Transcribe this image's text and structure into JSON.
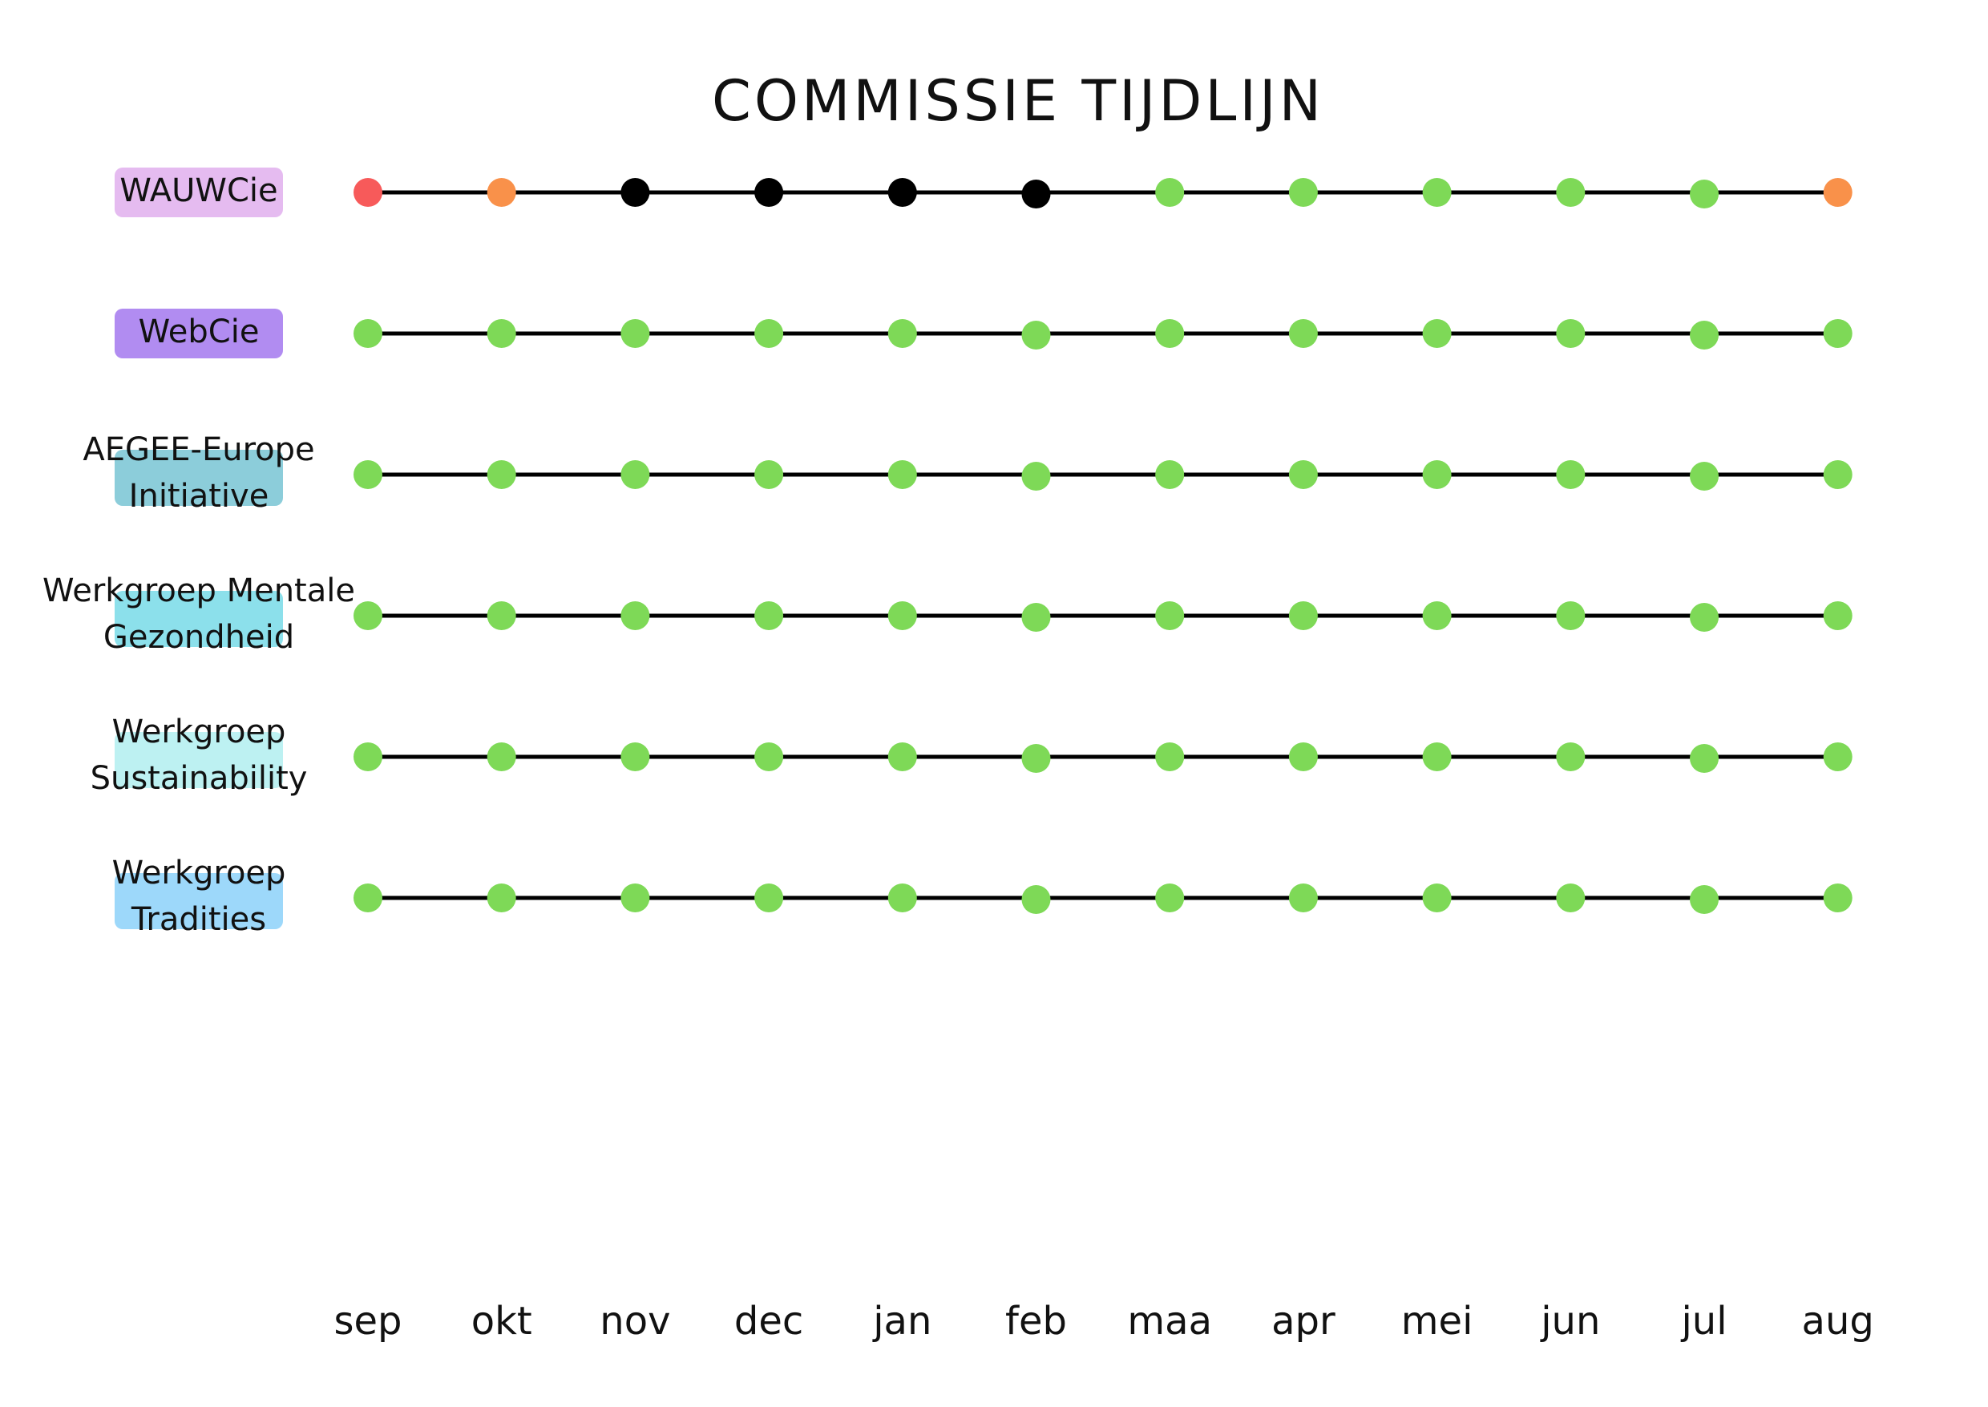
{
  "header": {
    "title": "COMMISSIE TIJDLIJN"
  },
  "months": [
    "sep",
    "okt",
    "nov",
    "dec",
    "jan",
    "feb",
    "maa",
    "apr",
    "mei",
    "jun",
    "jul",
    "aug"
  ],
  "rows": [
    {
      "label": [
        "WAUWCie"
      ],
      "highlight": "#e2b4ee",
      "dots": [
        "#f75a5a",
        "#f9914a",
        "#000000",
        "#000000",
        "#000000",
        "#000000",
        "#7ed957",
        "#7ed957",
        "#7ed957",
        "#7ed957",
        "#7ed957",
        "#f9914a"
      ]
    },
    {
      "label": [
        "WebCie"
      ],
      "highlight": "#a97ff0",
      "dots": [
        "#7ed957",
        "#7ed957",
        "#7ed957",
        "#7ed957",
        "#7ed957",
        "#7ed957",
        "#7ed957",
        "#7ed957",
        "#7ed957",
        "#7ed957",
        "#7ed957",
        "#7ed957"
      ]
    },
    {
      "label": [
        "AEGEE-Europe",
        "Initiative"
      ],
      "highlight": "#80c8d6",
      "dots": [
        "#7ed957",
        "#7ed957",
        "#7ed957",
        "#7ed957",
        "#7ed957",
        "#7ed957",
        "#7ed957",
        "#7ed957",
        "#7ed957",
        "#7ed957",
        "#7ed957",
        "#7ed957"
      ]
    },
    {
      "label": [
        "Werkgroep Mentale",
        "Gezondheid"
      ],
      "highlight": "#7fdde9",
      "dots": [
        "#7ed957",
        "#7ed957",
        "#7ed957",
        "#7ed957",
        "#7ed957",
        "#7ed957",
        "#7ed957",
        "#7ed957",
        "#7ed957",
        "#7ed957",
        "#7ed957",
        "#7ed957"
      ]
    },
    {
      "label": [
        "Werkgroep",
        "Sustainability"
      ],
      "highlight": "#b6eff1",
      "dots": [
        "#7ed957",
        "#7ed957",
        "#7ed957",
        "#7ed957",
        "#7ed957",
        "#7ed957",
        "#7ed957",
        "#7ed957",
        "#7ed957",
        "#7ed957",
        "#7ed957",
        "#7ed957"
      ]
    },
    {
      "label": [
        "Werkgroep",
        "Tradities"
      ],
      "highlight": "#92d4fa",
      "dots": [
        "#7ed957",
        "#7ed957",
        "#7ed957",
        "#7ed957",
        "#7ed957",
        "#7ed957",
        "#7ed957",
        "#7ed957",
        "#7ed957",
        "#7ed957",
        "#7ed957",
        "#7ed957"
      ]
    }
  ]
}
